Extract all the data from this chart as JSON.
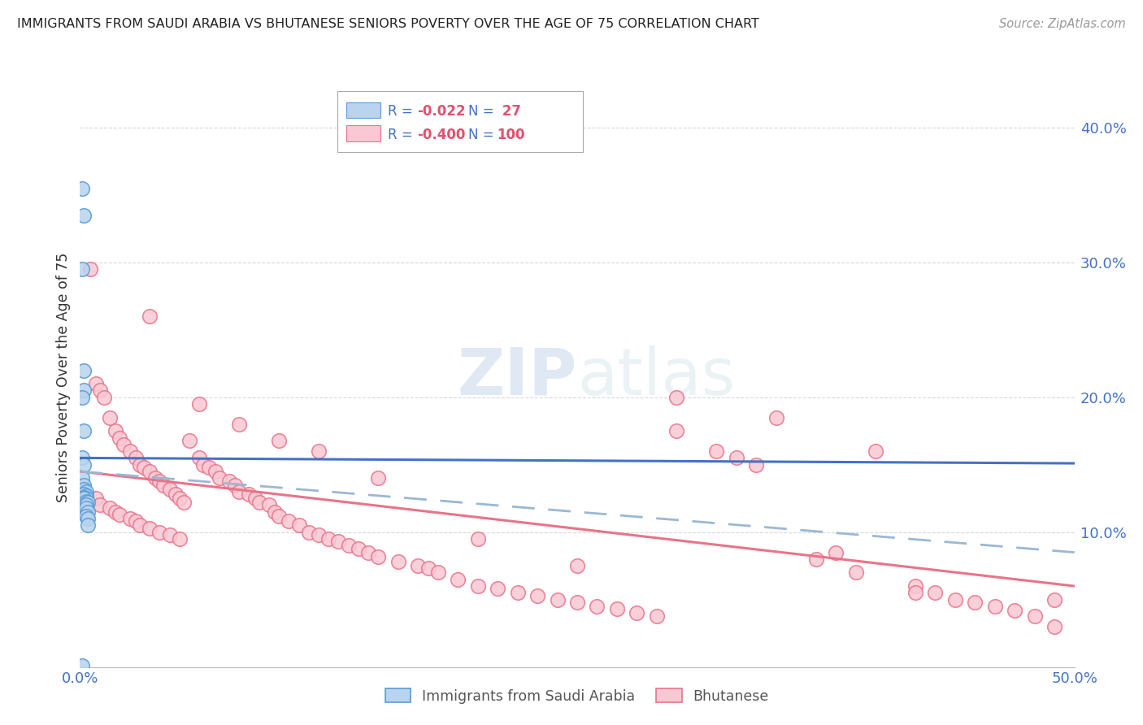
{
  "title": "IMMIGRANTS FROM SAUDI ARABIA VS BHUTANESE SENIORS POVERTY OVER THE AGE OF 75 CORRELATION CHART",
  "source": "Source: ZipAtlas.com",
  "ylabel": "Seniors Poverty Over the Age of 75",
  "xlim": [
    0.0,
    0.5
  ],
  "ylim": [
    0.0,
    0.43
  ],
  "saudi_fill": "#b8d4ee",
  "saudi_edge": "#5b9bd5",
  "bhutan_fill": "#f9c8d4",
  "bhutan_edge": "#e8748a",
  "legend_saudi_label": "Immigrants from Saudi Arabia",
  "legend_bhutanese_label": "Bhutanese",
  "r_saudi": "-0.022",
  "n_saudi": " 27",
  "r_bhutan": "-0.400",
  "n_bhutan": "100",
  "line_saudi_color": "#4472c4",
  "line_bhutan_color": "#e8748a",
  "line_dashed_color": "#9ab8d4",
  "watermark_zip": "ZIP",
  "watermark_atlas": "atlas",
  "background_color": "#ffffff",
  "grid_color": "#d8d8d8",
  "saudi_x": [
    0.001,
    0.002,
    0.001,
    0.002,
    0.002,
    0.001,
    0.002,
    0.001,
    0.002,
    0.001,
    0.002,
    0.002,
    0.003,
    0.002,
    0.003,
    0.002,
    0.003,
    0.002,
    0.003,
    0.004,
    0.003,
    0.003,
    0.004,
    0.003,
    0.004,
    0.004,
    0.001
  ],
  "saudi_y": [
    0.355,
    0.335,
    0.295,
    0.22,
    0.205,
    0.2,
    0.175,
    0.155,
    0.15,
    0.14,
    0.135,
    0.132,
    0.13,
    0.128,
    0.127,
    0.126,
    0.125,
    0.125,
    0.123,
    0.122,
    0.12,
    0.118,
    0.115,
    0.112,
    0.11,
    0.105,
    0.001
  ],
  "bhutan_x": [
    0.005,
    0.008,
    0.01,
    0.012,
    0.015,
    0.018,
    0.02,
    0.022,
    0.025,
    0.028,
    0.03,
    0.032,
    0.035,
    0.038,
    0.04,
    0.042,
    0.045,
    0.048,
    0.05,
    0.052,
    0.008,
    0.01,
    0.015,
    0.018,
    0.02,
    0.025,
    0.028,
    0.03,
    0.035,
    0.04,
    0.045,
    0.05,
    0.055,
    0.06,
    0.062,
    0.065,
    0.068,
    0.07,
    0.075,
    0.078,
    0.08,
    0.085,
    0.088,
    0.09,
    0.095,
    0.098,
    0.1,
    0.105,
    0.11,
    0.115,
    0.12,
    0.125,
    0.13,
    0.135,
    0.14,
    0.145,
    0.15,
    0.16,
    0.17,
    0.175,
    0.18,
    0.19,
    0.2,
    0.21,
    0.22,
    0.23,
    0.24,
    0.25,
    0.26,
    0.27,
    0.28,
    0.29,
    0.3,
    0.32,
    0.33,
    0.34,
    0.35,
    0.37,
    0.39,
    0.4,
    0.42,
    0.43,
    0.44,
    0.45,
    0.46,
    0.47,
    0.48,
    0.49,
    0.035,
    0.06,
    0.08,
    0.1,
    0.12,
    0.15,
    0.2,
    0.25,
    0.3,
    0.38,
    0.42,
    0.49
  ],
  "bhutan_y": [
    0.295,
    0.21,
    0.205,
    0.2,
    0.185,
    0.175,
    0.17,
    0.165,
    0.16,
    0.155,
    0.15,
    0.148,
    0.145,
    0.14,
    0.138,
    0.135,
    0.132,
    0.128,
    0.125,
    0.122,
    0.125,
    0.12,
    0.118,
    0.115,
    0.113,
    0.11,
    0.108,
    0.105,
    0.103,
    0.1,
    0.098,
    0.095,
    0.168,
    0.155,
    0.15,
    0.148,
    0.145,
    0.14,
    0.138,
    0.135,
    0.13,
    0.128,
    0.125,
    0.122,
    0.12,
    0.115,
    0.112,
    0.108,
    0.105,
    0.1,
    0.098,
    0.095,
    0.093,
    0.09,
    0.088,
    0.085,
    0.082,
    0.078,
    0.075,
    0.073,
    0.07,
    0.065,
    0.06,
    0.058,
    0.055,
    0.053,
    0.05,
    0.048,
    0.045,
    0.043,
    0.04,
    0.038,
    0.175,
    0.16,
    0.155,
    0.15,
    0.185,
    0.08,
    0.07,
    0.16,
    0.06,
    0.055,
    0.05,
    0.048,
    0.045,
    0.042,
    0.038,
    0.03,
    0.26,
    0.195,
    0.18,
    0.168,
    0.16,
    0.14,
    0.095,
    0.075,
    0.2,
    0.085,
    0.055,
    0.05
  ]
}
